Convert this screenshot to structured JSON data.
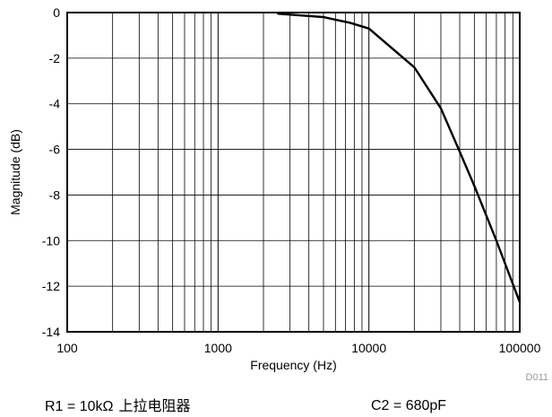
{
  "chart_data": {
    "type": "line",
    "xlabel": "Frequency (Hz)",
    "ylabel": "Magnitude (dB)",
    "x_scale": "log",
    "xlim": [
      100,
      100000
    ],
    "ylim": [
      -14,
      0
    ],
    "x_ticks": [
      {
        "value": 100,
        "label": "100"
      },
      {
        "value": 1000,
        "label": "1000"
      },
      {
        "value": 10000,
        "label": "10000"
      },
      {
        "value": 100000,
        "label": "100000"
      }
    ],
    "y_ticks": [
      {
        "value": 0,
        "label": "0"
      },
      {
        "value": -2,
        "label": "-2"
      },
      {
        "value": -4,
        "label": "-4"
      },
      {
        "value": -6,
        "label": "-6"
      },
      {
        "value": -8,
        "label": "-8"
      },
      {
        "value": -10,
        "label": "-10"
      },
      {
        "value": -12,
        "label": "-12"
      },
      {
        "value": -14,
        "label": "-14"
      }
    ],
    "grid": true,
    "series": [
      {
        "x": [
          2500,
          5000,
          7500,
          10000,
          20000,
          30000,
          40000,
          50000,
          70000,
          100000
        ],
        "y": [
          -0.05,
          -0.2,
          -0.45,
          -0.7,
          -2.4,
          -4.2,
          -6.1,
          -7.6,
          -10.0,
          -12.7
        ]
      }
    ],
    "code": "D011",
    "colors": {
      "line": "#000000",
      "grid": "#000000",
      "code": "#9a9a9a"
    }
  },
  "captions": {
    "left_main": "R1 = 10kΩ",
    "left_cjk": "上拉电阻器",
    "right": "C2 = 680pF"
  }
}
